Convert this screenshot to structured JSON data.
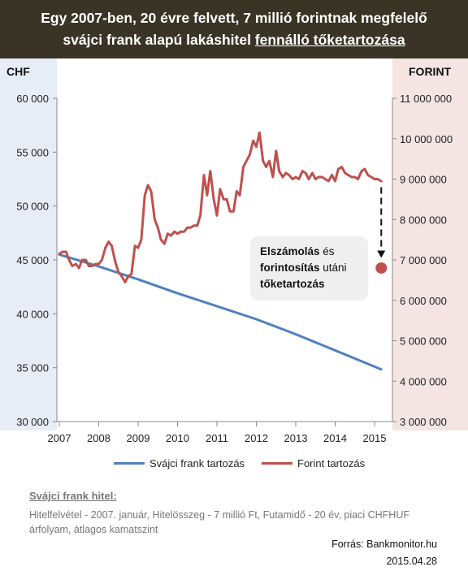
{
  "header": {
    "title_line1": "Egy 2007-ben, 20 évre felvett, 7 millió forintnak megfelelő",
    "title_line2_prefix": "svájci frank alapú lakáshitel ",
    "title_line2_underlined": "fennálló tőketartozása"
  },
  "units": {
    "left": "CHF",
    "right": "FORINT"
  },
  "callout": {
    "bold1": "Elszámolás",
    "text1": " és",
    "bold2": "forintosítás",
    "text2": " utáni",
    "bold3": "tőketartozás"
  },
  "legend": {
    "chf_label": "Svájci frank tartozás",
    "huf_label": "Forint tartozás"
  },
  "footer": {
    "title": "Svájci frank hitel:",
    "description": "Hitelfelvétel - 2007.  január, Hitelösszeg - 7 millió Ft, Futamidő - 20 év, piaci CHFHUF árfolyam, átlagos kamatszint",
    "source": "Forrás: Bankmonitor.hu",
    "date": "2015.04.28"
  },
  "chart_data": {
    "type": "line",
    "x_ticks": [
      "2007",
      "2008",
      "2009",
      "2010",
      "2011",
      "2012",
      "2013",
      "2014",
      "2015"
    ],
    "x_range": [
      2007,
      2015.45
    ],
    "y_left": {
      "range": [
        30000,
        60000
      ],
      "step": 5000,
      "ticks": [
        "30 000",
        "35 000",
        "40 000",
        "45 000",
        "50 000",
        "55 000",
        "60 000"
      ]
    },
    "y_right": {
      "range": [
        3000000,
        11000000
      ],
      "step": 1000000,
      "ticks": [
        "3 000 000",
        "4 000 000",
        "5 000 000",
        "6 000 000",
        "7 000 000",
        "8 000 000",
        "9 000 000",
        "10 000 000",
        "11 000 000"
      ]
    },
    "series": [
      {
        "name": "Svájci frank tartozás",
        "axis": "left",
        "color": "#4f81bd",
        "x": [
          2007.0,
          2008.0,
          2009.0,
          2010.0,
          2011.0,
          2012.0,
          2013.0,
          2014.0,
          2015.17
        ],
        "y": [
          45500,
          44400,
          43200,
          41900,
          40700,
          39500,
          38100,
          36600,
          34850
        ]
      },
      {
        "name": "Forint tartozás",
        "axis": "right",
        "color": "#c0504d",
        "x": [
          2007.0,
          2007.08,
          2007.17,
          2007.25,
          2007.33,
          2007.42,
          2007.5,
          2007.58,
          2007.67,
          2007.75,
          2007.83,
          2007.92,
          2008.0,
          2008.08,
          2008.17,
          2008.25,
          2008.33,
          2008.42,
          2008.5,
          2008.58,
          2008.67,
          2008.75,
          2008.83,
          2008.92,
          2009.0,
          2009.08,
          2009.17,
          2009.25,
          2009.33,
          2009.42,
          2009.5,
          2009.58,
          2009.67,
          2009.75,
          2009.83,
          2009.92,
          2010.0,
          2010.08,
          2010.17,
          2010.25,
          2010.33,
          2010.42,
          2010.5,
          2010.58,
          2010.67,
          2010.75,
          2010.83,
          2010.92,
          2011.0,
          2011.08,
          2011.17,
          2011.25,
          2011.33,
          2011.42,
          2011.5,
          2011.58,
          2011.67,
          2011.75,
          2011.83,
          2011.92,
          2012.0,
          2012.08,
          2012.17,
          2012.25,
          2012.33,
          2012.42,
          2012.5,
          2012.58,
          2012.67,
          2012.75,
          2012.83,
          2012.92,
          2013.0,
          2013.08,
          2013.17,
          2013.25,
          2013.33,
          2013.42,
          2013.5,
          2013.58,
          2013.67,
          2013.75,
          2013.83,
          2013.92,
          2014.0,
          2014.08,
          2014.17,
          2014.25,
          2014.33,
          2014.42,
          2014.5,
          2014.58,
          2014.67,
          2014.75,
          2014.83,
          2014.92,
          2015.0,
          2015.08,
          2015.17
        ],
        "y": [
          7150000,
          7200000,
          7200000,
          7000000,
          6850000,
          6900000,
          6800000,
          7000000,
          7000000,
          6850000,
          6850000,
          6900000,
          6900000,
          7000000,
          7300000,
          7450000,
          7350000,
          6950000,
          6700000,
          6600000,
          6450000,
          6600000,
          6650000,
          7350000,
          7300000,
          7500000,
          8600000,
          8850000,
          8700000,
          8000000,
          7800000,
          7500000,
          7400000,
          7650000,
          7600000,
          7700000,
          7650000,
          7700000,
          7700000,
          7800000,
          7800000,
          7850000,
          7850000,
          8100000,
          9100000,
          8600000,
          9200000,
          8500000,
          8100000,
          8750000,
          8500000,
          8500000,
          8200000,
          8200000,
          8700000,
          8600000,
          9300000,
          9450000,
          9600000,
          9950000,
          9800000,
          10150000,
          9450000,
          9300000,
          9450000,
          9050000,
          9700000,
          9200000,
          9050000,
          9150000,
          9100000,
          9000000,
          9050000,
          9000000,
          9200000,
          9150000,
          9000000,
          9150000,
          9000000,
          9050000,
          9050000,
          9000000,
          8950000,
          9100000,
          8950000,
          9250000,
          9300000,
          9150000,
          9100000,
          9050000,
          9050000,
          9000000,
          9200000,
          9250000,
          9100000,
          9050000,
          9000000,
          9000000,
          8950000
        ]
      }
    ],
    "marker": {
      "x": 2015.17,
      "value": 6800000,
      "axis": "right",
      "color": "#c0504d"
    },
    "arrow": {
      "x": 2015.17,
      "from": 8800000,
      "to": 7050000
    }
  }
}
